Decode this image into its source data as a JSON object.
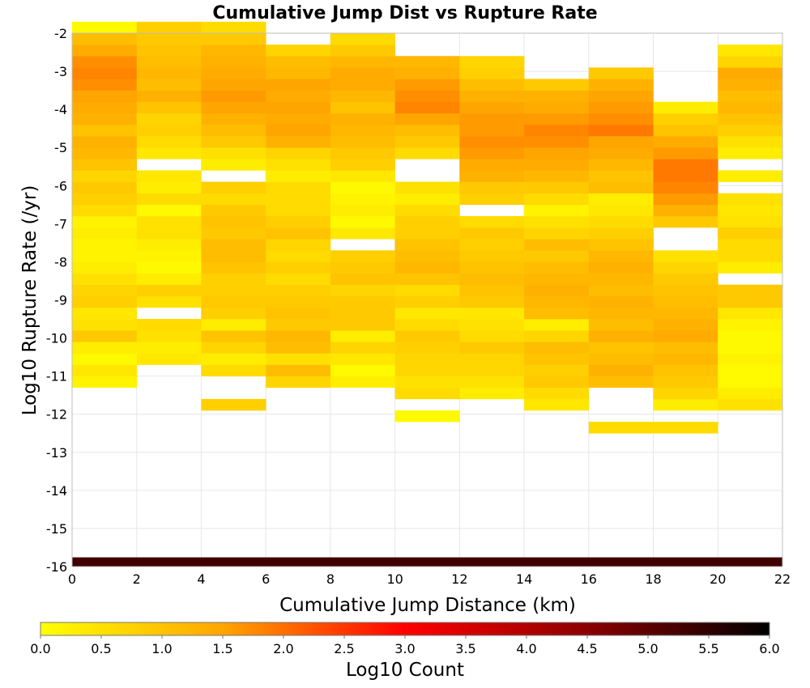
{
  "chart_data": {
    "type": "heatmap",
    "title": "Cumulative Jump Dist vs Rupture Rate",
    "xlabel": "Cumulative Jump Distance (km)",
    "ylabel": "Log10 Rupture Rate (/yr)",
    "xlim": [
      0,
      22
    ],
    "ylim": [
      -16,
      -2
    ],
    "x_ticks": [
      "0",
      "2",
      "4",
      "6",
      "8",
      "10",
      "12",
      "14",
      "16",
      "18",
      "20",
      "22"
    ],
    "y_ticks": [
      "-2",
      "-3",
      "-4",
      "-5",
      "-6",
      "-7",
      "-8",
      "-9",
      "-10",
      "-11",
      "-12",
      "-13",
      "-14",
      "-15",
      "-16"
    ],
    "x_bin_width": 2,
    "y_bin_height": 0.3,
    "grid": true,
    "colorbar": {
      "label": "Log10 Count",
      "range": [
        0,
        6
      ],
      "ticks": [
        "0.0",
        "0.5",
        "1.0",
        "1.5",
        "2.0",
        "2.5",
        "3.0",
        "3.5",
        "4.0",
        "4.5",
        "5.0",
        "5.5",
        "6.0"
      ],
      "colors": [
        "#ffff00",
        "#ffa500",
        "#ff0000",
        "#8b0000",
        "#000000"
      ]
    },
    "columns": [
      {
        "x": 0,
        "y_start": -11.3,
        "values": [
          0.2,
          0.4,
          0.1,
          0.3,
          0.9,
          0.5,
          0.4,
          0.8,
          0.7,
          0.5,
          0.3,
          0.2,
          0.2,
          0.3,
          0.2,
          0.6,
          0.8,
          0.9,
          0.7,
          1.0,
          1.2,
          1.3,
          1.0,
          1.3,
          1.4,
          1.5,
          1.7,
          1.8,
          1.7,
          1.4,
          1.1,
          0.1
        ]
      },
      {
        "x": 2,
        "y_start": -10.7,
        "values": [
          0.4,
          0.3,
          0.5,
          0.6,
          null,
          0.5,
          0.8,
          0.3,
          0.1,
          0.2,
          0.3,
          0.5,
          0.5,
          0.1,
          0.6,
          0.3,
          0.4,
          null,
          0.4,
          0.6,
          0.8,
          0.7,
          1.0,
          1.3,
          1.1,
          1.2,
          1.1,
          1.0,
          0.9,
          0.8
        ]
      },
      {
        "x": 4,
        "y_start": -11.9,
        "values": [
          0.8,
          null,
          null,
          0.6,
          0.3,
          0.7,
          1.0,
          0.3,
          0.8,
          0.9,
          0.8,
          0.8,
          1.0,
          1.1,
          1.1,
          0.9,
          1.0,
          0.9,
          0.6,
          0.8,
          null,
          0.3,
          0.5,
          0.9,
          1.1,
          1.3,
          1.5,
          1.6,
          1.5,
          1.4,
          1.3,
          1.2,
          0.9,
          0.6
        ]
      },
      {
        "x": 6,
        "y_start": -11.3,
        "values": [
          0.7,
          1.1,
          0.5,
          1.1,
          1.2,
          0.9,
          1.0,
          0.9,
          0.8,
          0.6,
          0.8,
          0.6,
          0.7,
          1.0,
          0.8,
          0.6,
          0.6,
          0.6,
          0.3,
          0.5,
          0.7,
          1.3,
          1.5,
          1.4,
          1.5,
          1.4,
          1.5,
          1.2,
          1.1,
          0.7
        ]
      },
      {
        "x": 8,
        "y_start": -11.3,
        "values": [
          0.3,
          0.1,
          0.4,
          0.7,
          0.3,
          0.9,
          0.9,
          0.9,
          0.7,
          1.0,
          0.9,
          0.8,
          null,
          0.4,
          0.1,
          0.3,
          0.2,
          0.1,
          0.4,
          0.8,
          0.9,
          1.1,
          1.2,
          1.3,
          1.0,
          1.2,
          1.4,
          1.4,
          1.2,
          0.9,
          0.6
        ]
      },
      {
        "x": 10,
        "y_start": -12.2,
        "values": [
          0.1,
          null,
          0.6,
          0.5,
          0.7,
          0.7,
          0.8,
          0.9,
          0.6,
          0.4,
          0.8,
          0.6,
          1.0,
          1.2,
          1.1,
          1.0,
          0.8,
          0.8,
          0.6,
          0.3,
          0.5,
          null,
          null,
          0.6,
          0.9,
          1.1,
          1.5,
          1.8,
          1.7,
          1.6,
          1.3,
          1.2
        ]
      },
      {
        "x": 12,
        "y_start": -11.6,
        "values": [
          0.3,
          0.5,
          0.7,
          0.7,
          0.9,
          0.6,
          0.5,
          0.4,
          0.9,
          1.0,
          1.1,
          1.0,
          0.9,
          0.8,
          0.9,
          0.6,
          null,
          0.8,
          0.9,
          1.3,
          1.4,
          1.6,
          1.7,
          1.6,
          1.6,
          1.5,
          1.3,
          1.1,
          0.8,
          0.7
        ]
      },
      {
        "x": 14,
        "y_start": -11.9,
        "values": [
          0.4,
          0.6,
          0.9,
          0.8,
          1.0,
          1.1,
          0.7,
          0.3,
          1.1,
          1.2,
          1.3,
          1.2,
          1.1,
          0.9,
          1.1,
          0.7,
          0.5,
          0.2,
          0.6,
          0.9,
          1.2,
          1.4,
          1.5,
          1.7,
          1.8,
          1.6,
          1.4,
          1.3,
          0.9
        ]
      },
      {
        "x": 16,
        "y_start": -12.5,
        "values": [
          0.6,
          null,
          null,
          null,
          1.1,
          1.3,
          1.1,
          1.0,
          1.3,
          1.1,
          1.2,
          1.3,
          1.1,
          1.2,
          1.3,
          1.2,
          1.0,
          0.8,
          0.6,
          0.4,
          0.3,
          1.1,
          1.0,
          1.2,
          1.4,
          1.5,
          1.9,
          1.7,
          1.6,
          1.5,
          1.3,
          0.9
        ]
      },
      {
        "x": 18,
        "y_start": -12.5,
        "values": [
          0.6,
          null,
          0.3,
          0.7,
          0.9,
          1.0,
          1.2,
          1.1,
          1.4,
          1.3,
          1.2,
          1.1,
          1.0,
          0.9,
          0.7,
          0.5,
          null,
          null,
          0.9,
          1.3,
          1.6,
          1.8,
          1.9,
          1.9,
          1.6,
          1.4,
          1.0,
          0.8,
          0.3
        ]
      },
      {
        "x": 20,
        "y_start": -11.9,
        "values": [
          0.5,
          0.3,
          0.1,
          0.1,
          0.2,
          0.1,
          0.1,
          0.2,
          0.4,
          0.9,
          0.9,
          null,
          0.3,
          0.6,
          0.6,
          0.8,
          0.5,
          0.4,
          0.5,
          null,
          0.3,
          null,
          0.3,
          0.5,
          0.8,
          1.0,
          1.2,
          1.1,
          1.3,
          1.4,
          0.7,
          0.4
        ]
      }
    ],
    "floor_band": {
      "x_start": 0,
      "x_end": 22,
      "y": -16,
      "height": 0.2,
      "value": 5.3
    }
  }
}
